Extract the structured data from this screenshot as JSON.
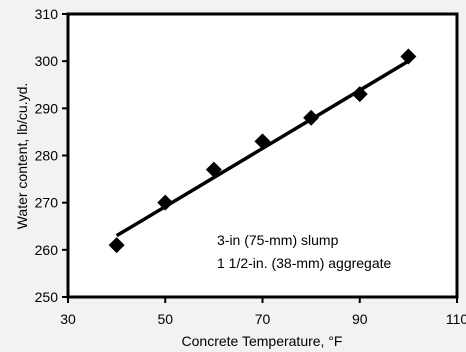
{
  "chart_data": {
    "type": "scatter",
    "title": "",
    "xlabel": "Concrete Temperature, °F",
    "ylabel": "Water content, lb/cu.yd.",
    "xlim": [
      30,
      110
    ],
    "ylim": [
      250,
      310
    ],
    "x_ticks": [
      30,
      50,
      70,
      90,
      110
    ],
    "y_ticks": [
      250,
      260,
      270,
      280,
      290,
      300,
      310
    ],
    "series": [
      {
        "marker": "diamond",
        "color": "#000000",
        "points": [
          {
            "x": 40,
            "y": 261
          },
          {
            "x": 50,
            "y": 270
          },
          {
            "x": 60,
            "y": 277
          },
          {
            "x": 70,
            "y": 283
          },
          {
            "x": 80,
            "y": 288
          },
          {
            "x": 90,
            "y": 293
          },
          {
            "x": 100,
            "y": 301
          }
        ]
      }
    ],
    "trendline": {
      "type": "linear",
      "color": "#000000",
      "x_start": 40,
      "x_end": 100,
      "y_start": 263,
      "y_end": 300
    },
    "annotations": [
      "3-in (75-mm) slump",
      "1 1/2-in. (38-mm) aggregate"
    ],
    "grid": false,
    "legend": "none",
    "background": "#f2f2f2",
    "plot_background": "#ffffff"
  }
}
